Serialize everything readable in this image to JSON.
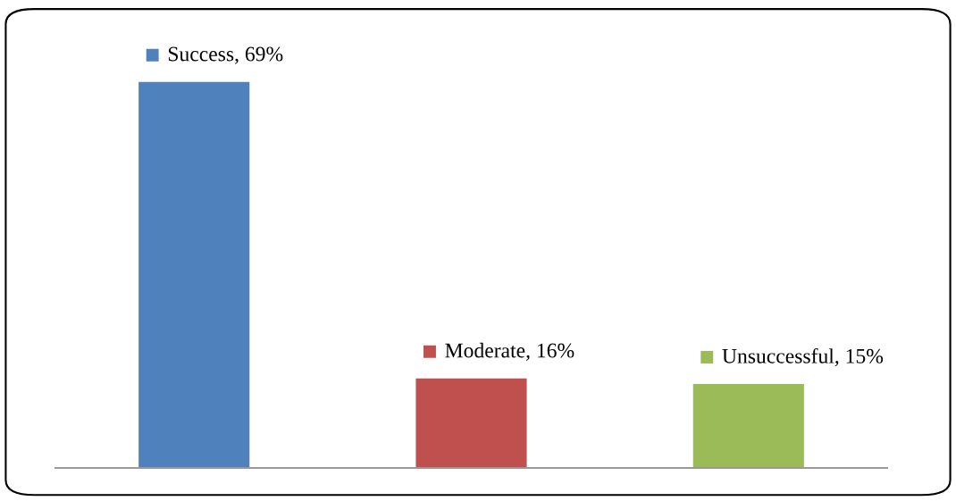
{
  "chart_data": {
    "type": "bar",
    "categories": [
      null,
      null,
      null
    ],
    "values": [
      69,
      16,
      15
    ],
    "value_labels": [
      "Success, 69%",
      "Moderate, 16%",
      "Unsuccessful, 15%"
    ],
    "colors": [
      "#4f81bd",
      "#c0504d",
      "#9bbb59"
    ]
  }
}
